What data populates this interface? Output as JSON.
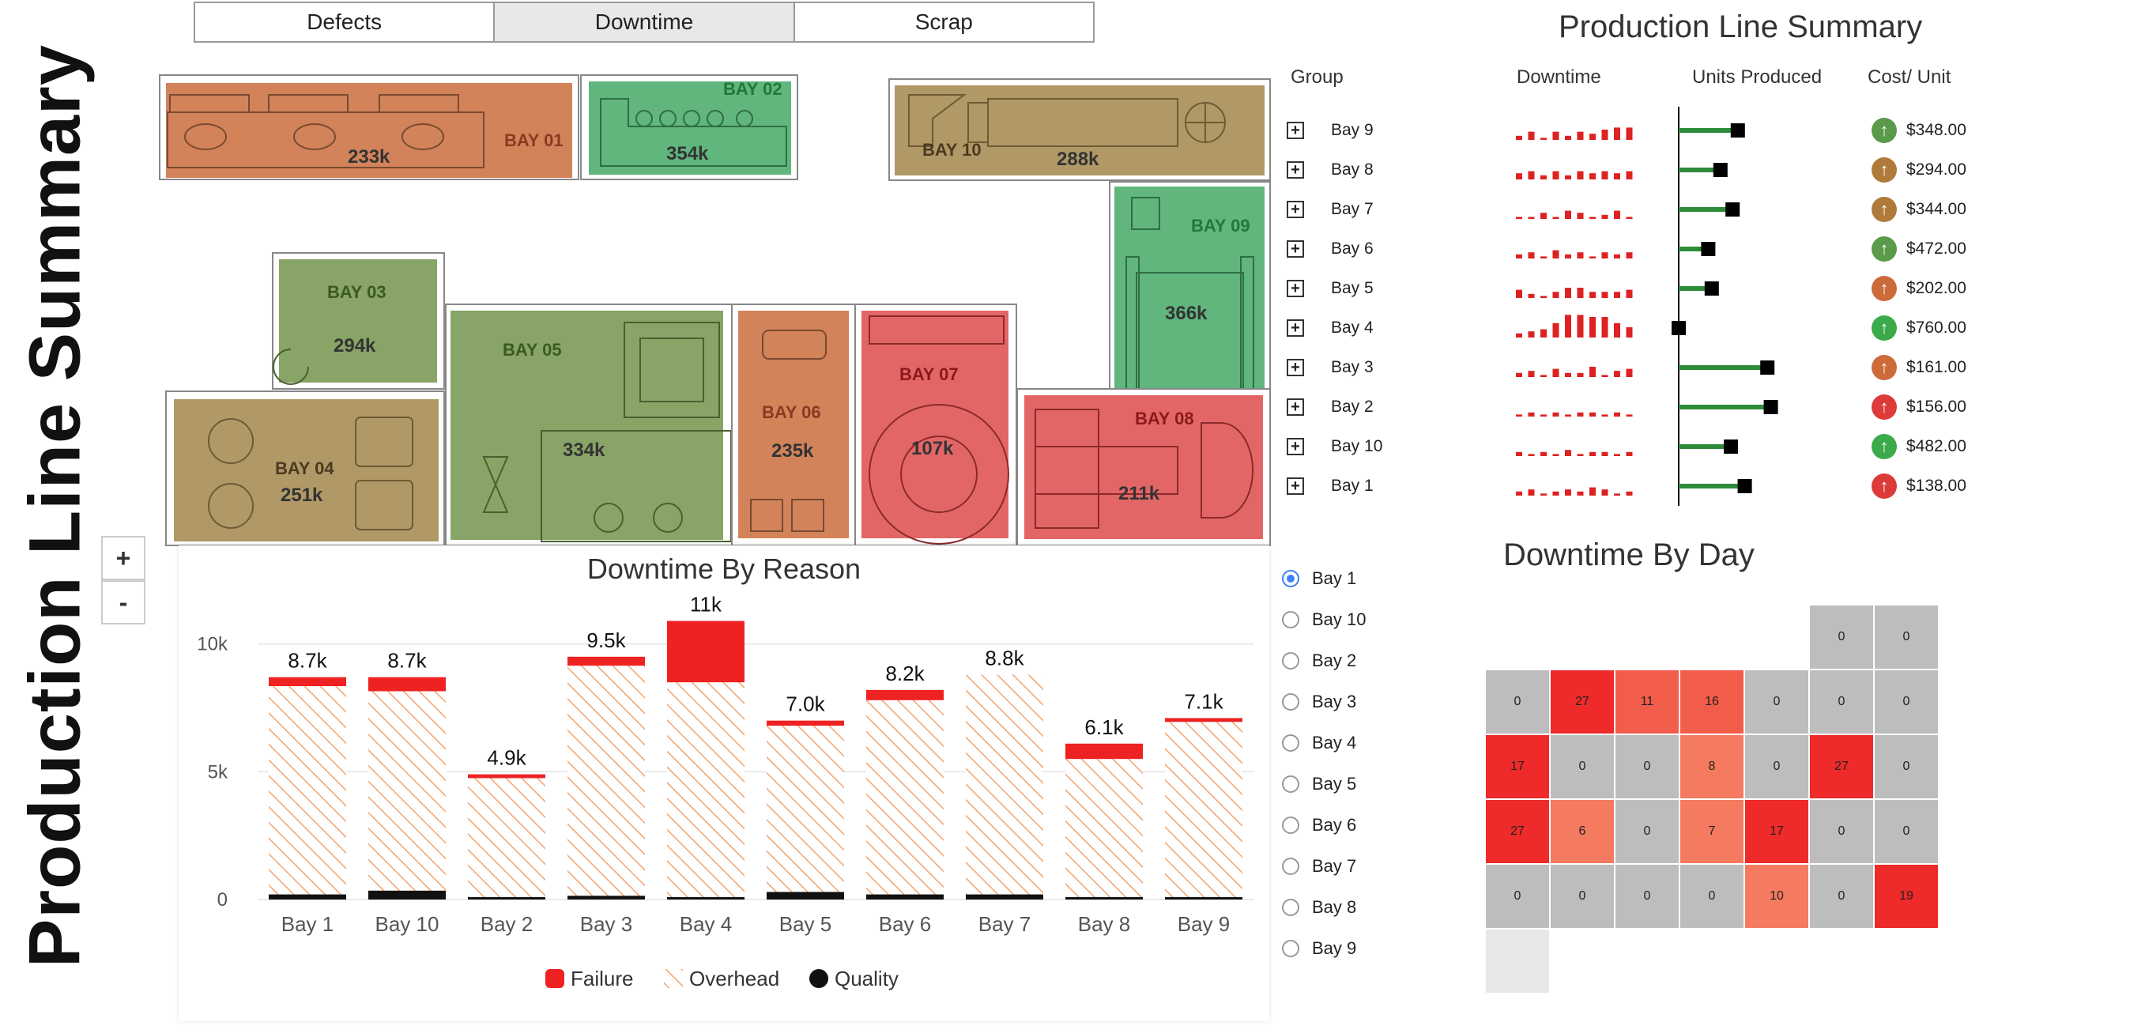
{
  "page_title": "Production Line Summary",
  "tabs": [
    {
      "label": "Defects",
      "active": false
    },
    {
      "label": "Downtime",
      "active": true
    },
    {
      "label": "Scrap",
      "active": false
    }
  ],
  "zoom": {
    "in_label": "+",
    "out_label": "-"
  },
  "floor_bays": [
    {
      "name": "BAY 01",
      "value": "233k",
      "status": "orange"
    },
    {
      "name": "BAY 02",
      "value": "354k",
      "status": "green"
    },
    {
      "name": "BAY 10",
      "value": "288k",
      "status": "tan"
    },
    {
      "name": "BAY 09",
      "value": "366k",
      "status": "green"
    },
    {
      "name": "BAY 03",
      "value": "294k",
      "status": "olive"
    },
    {
      "name": "BAY 05",
      "value": "334k",
      "status": "olive"
    },
    {
      "name": "BAY 06",
      "value": "235k",
      "status": "orange"
    },
    {
      "name": "BAY 07",
      "value": "107k",
      "status": "red"
    },
    {
      "name": "BAY 08",
      "value": "211k",
      "status": "red"
    },
    {
      "name": "BAY 04",
      "value": "251k",
      "status": "tan"
    }
  ],
  "colors": {
    "orange": "#cd7548",
    "green": "#4fae6e",
    "tan": "#a98d57",
    "olive": "#7c9a57",
    "red": "#e05555",
    "failure": "#ee2222",
    "overhead": "#f5a36b",
    "quality": "#111111",
    "sparkline": "#dd2222",
    "bullet": "#2e8b3a",
    "heat_grey": "#bdbdbd",
    "heat_light": "#f47a60",
    "heat_mid": "#f25c4a",
    "heat_dark": "#ee2a2a",
    "heat_empty": "#e8e8e8"
  },
  "chart_data": {
    "type": "bar",
    "title": "Downtime By Reason",
    "categories": [
      "Bay 1",
      "Bay 10",
      "Bay 2",
      "Bay 3",
      "Bay 4",
      "Bay 5",
      "Bay 6",
      "Bay 7",
      "Bay 8",
      "Bay 9"
    ],
    "series": [
      {
        "name": "Quality",
        "values": [
          200,
          350,
          100,
          150,
          100,
          300,
          200,
          200,
          100,
          100
        ]
      },
      {
        "name": "Overhead",
        "values": [
          8150,
          7800,
          4650,
          9000,
          8400,
          6500,
          7600,
          8600,
          5400,
          6850
        ]
      },
      {
        "name": "Failure",
        "values": [
          350,
          550,
          150,
          350,
          2400,
          200,
          400,
          0,
          600,
          150
        ]
      }
    ],
    "totals": [
      "8.7k",
      "8.7k",
      "4.9k",
      "9.5k",
      "11k",
      "7.0k",
      "8.2k",
      "8.8k",
      "6.1k",
      "7.1k"
    ],
    "y_ticks": [
      "0",
      "5k",
      "10k"
    ],
    "ylim": [
      0,
      12000
    ],
    "legend": [
      "Failure",
      "Overhead",
      "Quality"
    ],
    "legend_position": "bottom"
  },
  "bay_selector": {
    "options": [
      "Bay 1",
      "Bay 10",
      "Bay 2",
      "Bay 3",
      "Bay 4",
      "Bay 5",
      "Bay 6",
      "Bay 7",
      "Bay 8",
      "Bay 9"
    ],
    "selected": "Bay 1"
  },
  "summary": {
    "title": "Production Line Summary",
    "col_group": "Group",
    "col_downtime": "Downtime",
    "col_units": "Units Produced",
    "col_cost": "Cost/ Unit",
    "rows": [
      {
        "group": "Bay 9",
        "units_fraction": 0.34,
        "cost": "$348.00",
        "trend_color": "#5a9a4a",
        "spark": [
          2,
          4,
          1,
          4,
          2,
          4,
          3,
          5,
          6,
          6
        ]
      },
      {
        "group": "Bay 8",
        "units_fraction": 0.24,
        "cost": "$294.00",
        "trend_color": "#b07a3a",
        "spark": [
          3,
          4,
          2,
          4,
          2,
          4,
          3,
          4,
          3,
          4
        ]
      },
      {
        "group": "Bay 7",
        "units_fraction": 0.31,
        "cost": "$344.00",
        "trend_color": "#b07a3a",
        "spark": [
          1,
          1,
          3,
          1,
          4,
          3,
          1,
          2,
          4,
          1
        ]
      },
      {
        "group": "Bay 6",
        "units_fraction": 0.17,
        "cost": "$472.00",
        "trend_color": "#5a9a4a",
        "spark": [
          2,
          3,
          1,
          4,
          2,
          3,
          1,
          3,
          2,
          3
        ]
      },
      {
        "group": "Bay 5",
        "units_fraction": 0.19,
        "cost": "$202.00",
        "trend_color": "#cc6a3a",
        "spark": [
          4,
          2,
          1,
          3,
          5,
          5,
          3,
          3,
          3,
          4
        ]
      },
      {
        "group": "Bay 4",
        "units_fraction": 0.0,
        "cost": "$760.00",
        "trend_color": "#3aaa4a",
        "spark": [
          2,
          3,
          4,
          7,
          11,
          11,
          10,
          10,
          7,
          5
        ]
      },
      {
        "group": "Bay 3",
        "units_fraction": 0.51,
        "cost": "$161.00",
        "trend_color": "#cc6a3a",
        "spark": [
          2,
          3,
          1,
          4,
          2,
          2,
          5,
          1,
          3,
          4
        ]
      },
      {
        "group": "Bay 2",
        "units_fraction": 0.53,
        "cost": "$156.00",
        "trend_color": "#dd3a3a",
        "spark": [
          1,
          2,
          1,
          2,
          1,
          2,
          2,
          1,
          2,
          1
        ]
      },
      {
        "group": "Bay 10",
        "units_fraction": 0.3,
        "cost": "$482.00",
        "trend_color": "#3aaa4a",
        "spark": [
          2,
          1,
          2,
          1,
          3,
          1,
          2,
          2,
          1,
          2
        ]
      },
      {
        "group": "Bay 1",
        "units_fraction": 0.38,
        "cost": "$138.00",
        "trend_color": "#dd3a3a",
        "spark": [
          2,
          3,
          1,
          2,
          3,
          2,
          4,
          3,
          1,
          2
        ]
      }
    ]
  },
  "downtime_by_day": {
    "title": "Downtime By Day",
    "cells": [
      {
        "row": 0,
        "col": 5,
        "value": "0"
      },
      {
        "row": 0,
        "col": 6,
        "value": "0"
      },
      {
        "row": 1,
        "col": 0,
        "value": "0"
      },
      {
        "row": 1,
        "col": 1,
        "value": "27"
      },
      {
        "row": 1,
        "col": 2,
        "value": "11"
      },
      {
        "row": 1,
        "col": 3,
        "value": "16"
      },
      {
        "row": 1,
        "col": 4,
        "value": "0"
      },
      {
        "row": 1,
        "col": 5,
        "value": "0"
      },
      {
        "row": 1,
        "col": 6,
        "value": "0"
      },
      {
        "row": 2,
        "col": 0,
        "value": "17"
      },
      {
        "row": 2,
        "col": 1,
        "value": "0"
      },
      {
        "row": 2,
        "col": 2,
        "value": "0"
      },
      {
        "row": 2,
        "col": 3,
        "value": "8"
      },
      {
        "row": 2,
        "col": 4,
        "value": "0"
      },
      {
        "row": 2,
        "col": 5,
        "value": "27"
      },
      {
        "row": 2,
        "col": 6,
        "value": "0"
      },
      {
        "row": 3,
        "col": 0,
        "value": "27"
      },
      {
        "row": 3,
        "col": 1,
        "value": "6"
      },
      {
        "row": 3,
        "col": 2,
        "value": "0"
      },
      {
        "row": 3,
        "col": 3,
        "value": "7"
      },
      {
        "row": 3,
        "col": 4,
        "value": "17"
      },
      {
        "row": 3,
        "col": 5,
        "value": "0"
      },
      {
        "row": 3,
        "col": 6,
        "value": "0"
      },
      {
        "row": 4,
        "col": 0,
        "value": "0"
      },
      {
        "row": 4,
        "col": 1,
        "value": "0"
      },
      {
        "row": 4,
        "col": 2,
        "value": "0"
      },
      {
        "row": 4,
        "col": 3,
        "value": "0"
      },
      {
        "row": 4,
        "col": 4,
        "value": "10"
      },
      {
        "row": 4,
        "col": 5,
        "value": "0"
      },
      {
        "row": 4,
        "col": 6,
        "value": "19"
      },
      {
        "row": 5,
        "col": 0,
        "value": ""
      }
    ]
  }
}
